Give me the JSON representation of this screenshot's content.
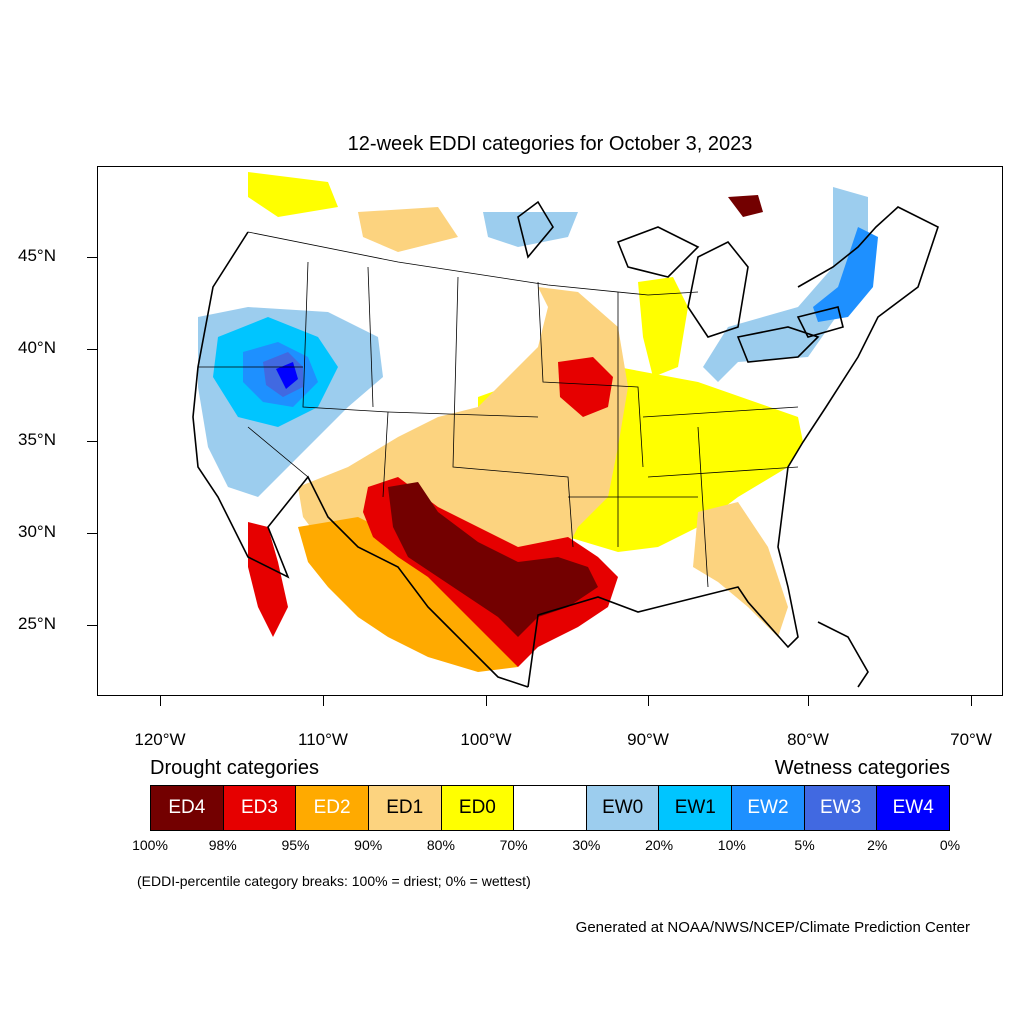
{
  "title": "12-week EDDI categories for October 3, 2023",
  "axes": {
    "lat_labels": [
      "45°N",
      "40°N",
      "35°N",
      "30°N",
      "25°N"
    ],
    "lon_labels": [
      "120°W",
      "110°W",
      "100°W",
      "90°W",
      "80°W",
      "70°W"
    ]
  },
  "legend": {
    "drought_heading": "Drought categories",
    "wetness_heading": "Wetness categories",
    "categories": [
      {
        "label": "ED4",
        "color": "#730000",
        "text_color": "#ffffff"
      },
      {
        "label": "ED3",
        "color": "#e60000",
        "text_color": "#ffffff"
      },
      {
        "label": "ED2",
        "color": "#ffaa00",
        "text_color": "#ffffff"
      },
      {
        "label": "ED1",
        "color": "#fcd37f",
        "text_color": "#000000"
      },
      {
        "label": "ED0",
        "color": "#ffff00",
        "text_color": "#000000"
      },
      {
        "label": "",
        "color": "#ffffff",
        "text_color": "#000000"
      },
      {
        "label": "EW0",
        "color": "#9ccdee",
        "text_color": "#000000"
      },
      {
        "label": "EW1",
        "color": "#00c5ff",
        "text_color": "#000000"
      },
      {
        "label": "EW2",
        "color": "#1e90ff",
        "text_color": "#ffffff"
      },
      {
        "label": "EW3",
        "color": "#4169e1",
        "text_color": "#ffffff"
      },
      {
        "label": "EW4",
        "color": "#0000ff",
        "text_color": "#ffffff"
      }
    ],
    "percentiles": [
      "100%",
      "98%",
      "95%",
      "90%",
      "80%",
      "70%",
      "30%",
      "20%",
      "10%",
      "5%",
      "2%",
      "0%"
    ]
  },
  "note": "(EDDI-percentile category breaks: 100% = driest; 0% = wettest)",
  "credit": "Generated at NOAA/NWS/NCEP/Climate Prediction Center"
}
